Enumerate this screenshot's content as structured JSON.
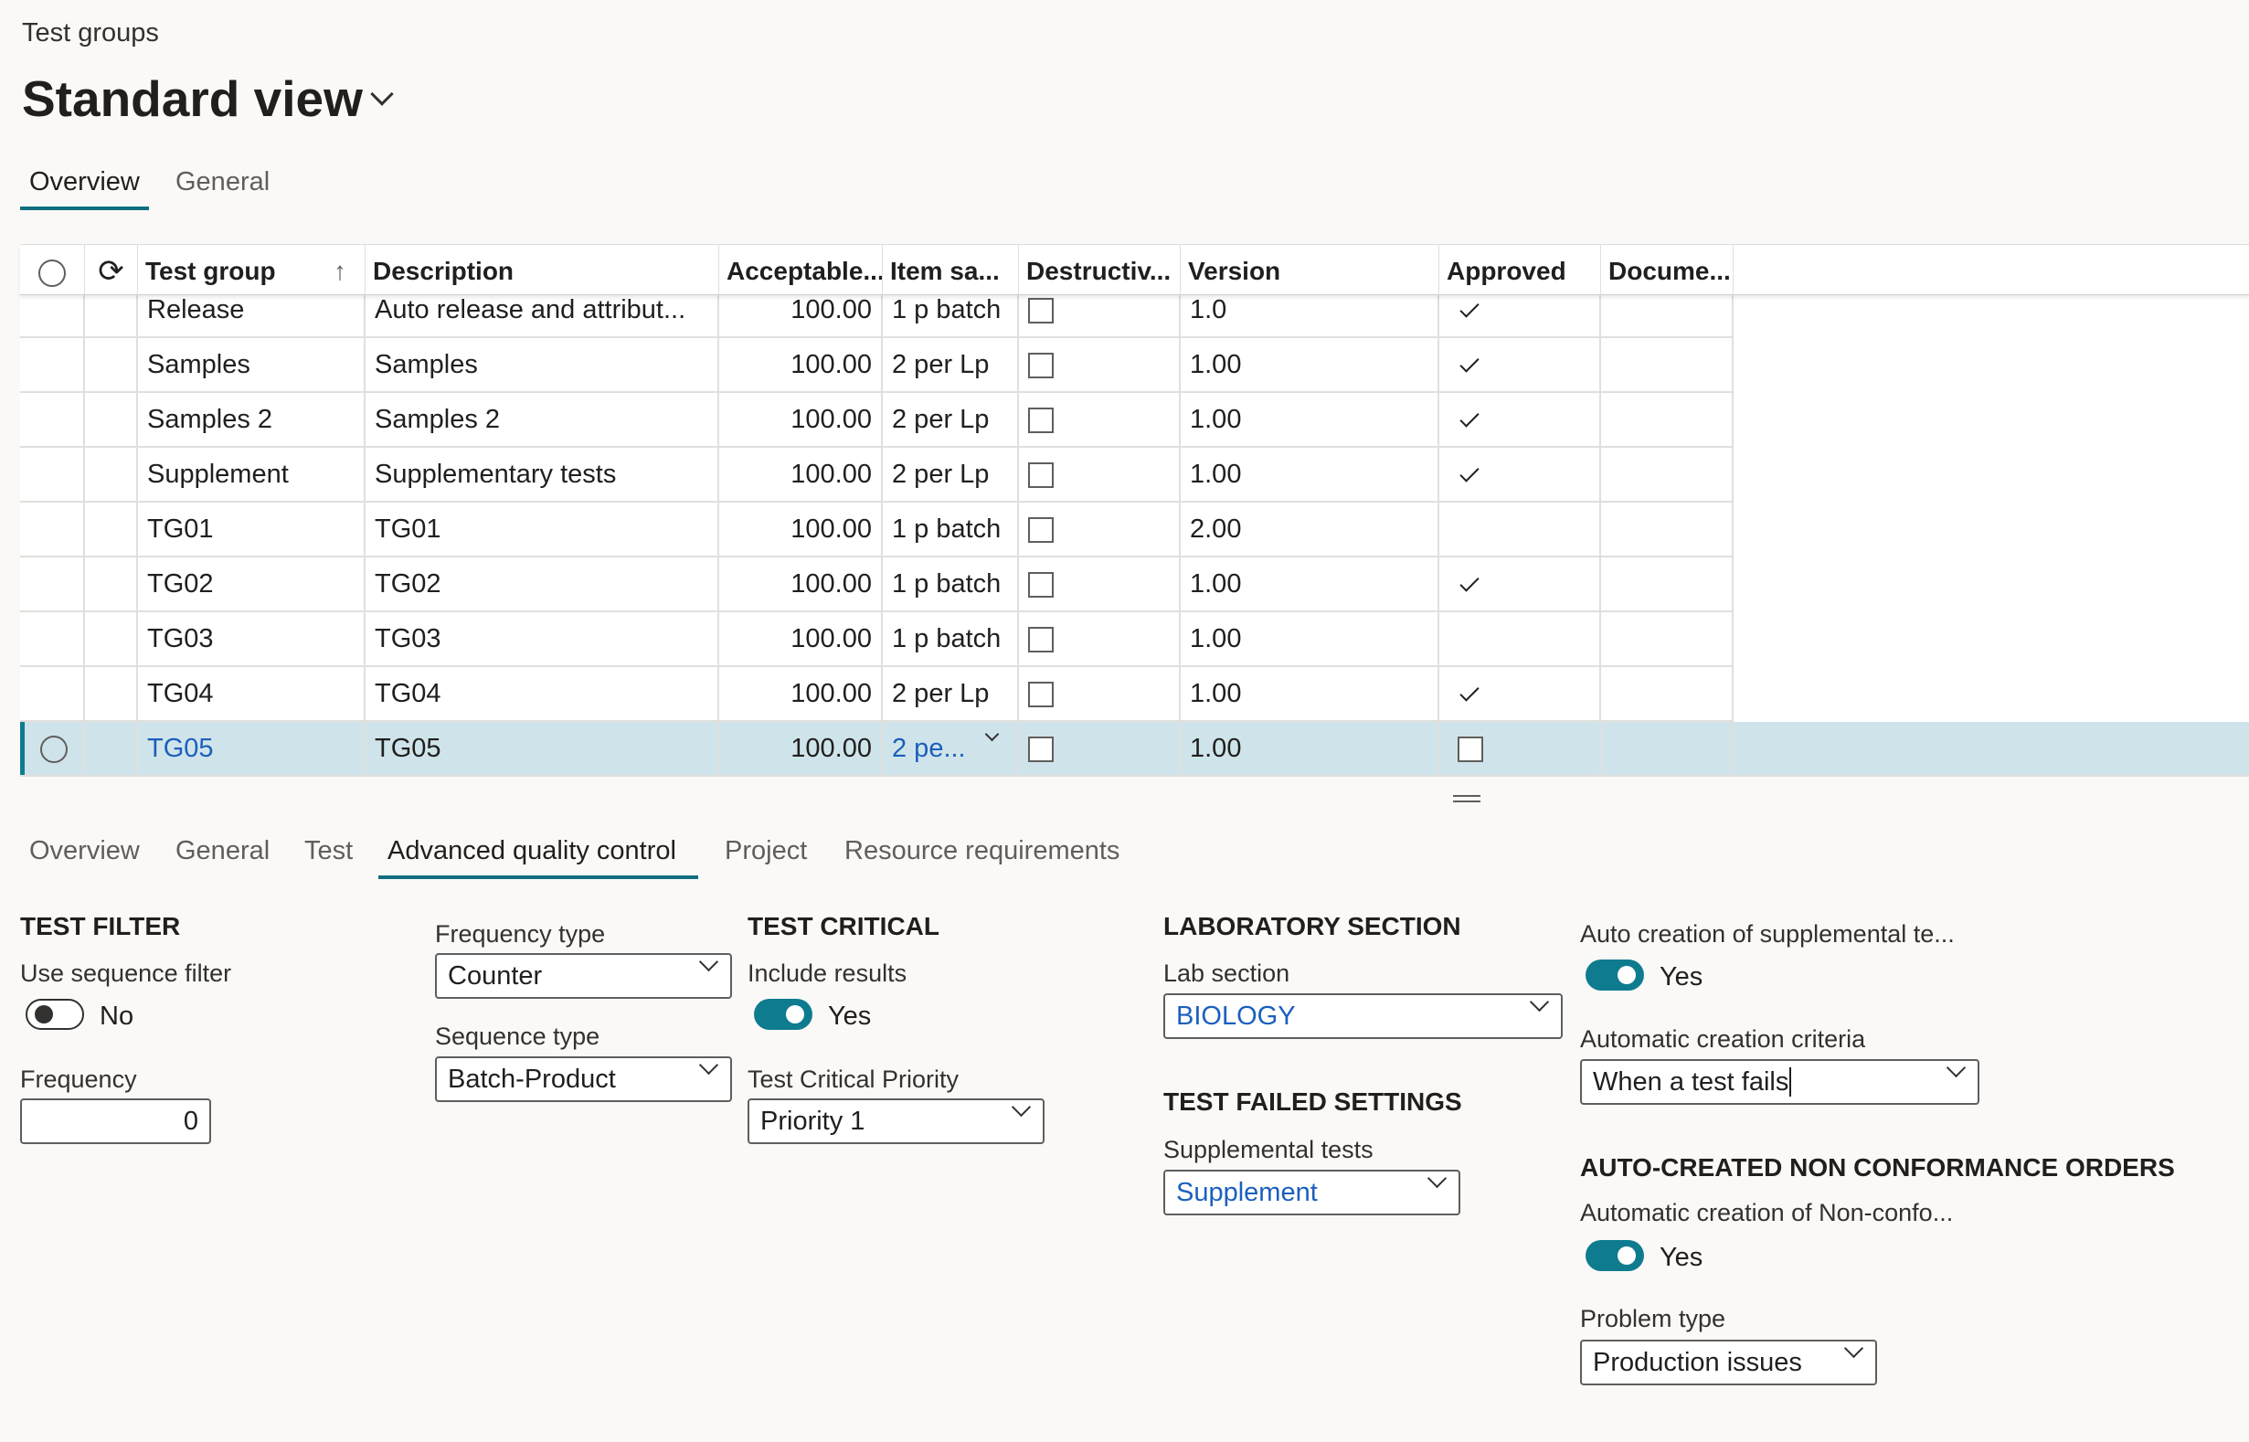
{
  "breadcrumb": "Test groups",
  "view_title": "Standard view",
  "top_tabs": [
    "Overview",
    "General"
  ],
  "grid": {
    "columns": [
      "Test group",
      "Description",
      "Acceptable...",
      "Item sa...",
      "Destructiv...",
      "Version",
      "Approved",
      "Docume..."
    ],
    "rows": [
      {
        "group": "Release",
        "desc": "Auto release and attribut...",
        "acc": "100.00",
        "item": "1 p batch",
        "destructive": false,
        "version": "1.0",
        "approved": true
      },
      {
        "group": "Samples",
        "desc": "Samples",
        "acc": "100.00",
        "item": "2 per Lp",
        "destructive": false,
        "version": "1.00",
        "approved": true
      },
      {
        "group": "Samples 2",
        "desc": "Samples 2",
        "acc": "100.00",
        "item": "2 per Lp",
        "destructive": false,
        "version": "1.00",
        "approved": true
      },
      {
        "group": "Supplement",
        "desc": "Supplementary tests",
        "acc": "100.00",
        "item": "2 per Lp",
        "destructive": false,
        "version": "1.00",
        "approved": true
      },
      {
        "group": "TG01",
        "desc": "TG01",
        "acc": "100.00",
        "item": "1 p batch",
        "destructive": false,
        "version": "2.00",
        "approved": false
      },
      {
        "group": "TG02",
        "desc": "TG02",
        "acc": "100.00",
        "item": "1 p batch",
        "destructive": false,
        "version": "1.00",
        "approved": true
      },
      {
        "group": "TG03",
        "desc": "TG03",
        "acc": "100.00",
        "item": "1 p batch",
        "destructive": false,
        "version": "1.00",
        "approved": false
      },
      {
        "group": "TG04",
        "desc": "TG04",
        "acc": "100.00",
        "item": "2 per Lp",
        "destructive": false,
        "version": "1.00",
        "approved": true
      },
      {
        "group": "TG05",
        "desc": "TG05",
        "acc": "100.00",
        "item": "2 pe...",
        "destructive": false,
        "version": "1.00",
        "approved": false,
        "selected": true
      }
    ]
  },
  "detail_tabs": [
    "Overview",
    "General",
    "Test",
    "Advanced quality control",
    "Project",
    "Resource requirements"
  ],
  "active_detail_tab": "Advanced quality control",
  "test_filter": {
    "heading": "TEST FILTER",
    "seq_label": "Use sequence filter",
    "seq_value": "No",
    "freq_label": "Frequency",
    "freq_value": "0",
    "freq_type_label": "Frequency type",
    "freq_type": "Counter",
    "seq_type_label": "Sequence type",
    "seq_type": "Batch-Product"
  },
  "test_critical": {
    "heading": "TEST CRITICAL",
    "include_label": "Include results",
    "include_value": "Yes",
    "priority_label": "Test Critical Priority",
    "priority": "Priority 1"
  },
  "lab": {
    "heading": "LABORATORY SECTION",
    "section_label": "Lab section",
    "section": "BIOLOGY"
  },
  "failed": {
    "heading": "TEST FAILED SETTINGS",
    "supp_label": "Supplemental tests",
    "supp": "Supplement"
  },
  "auto": {
    "supp_label": "Auto creation of supplemental te...",
    "supp_value": "Yes",
    "criteria_label": "Automatic creation criteria",
    "criteria": "When a test fails"
  },
  "ncr": {
    "heading": "AUTO-CREATED NON CONFORMANCE ORDERS",
    "auto_label": "Automatic creation of Non-confo...",
    "auto_value": "Yes",
    "problem_label": "Problem type",
    "problem": "Production issues"
  },
  "colors": {
    "accent": "#0f7b8f",
    "link": "#1b5fbd",
    "selected_row": "#cfe4ea"
  }
}
